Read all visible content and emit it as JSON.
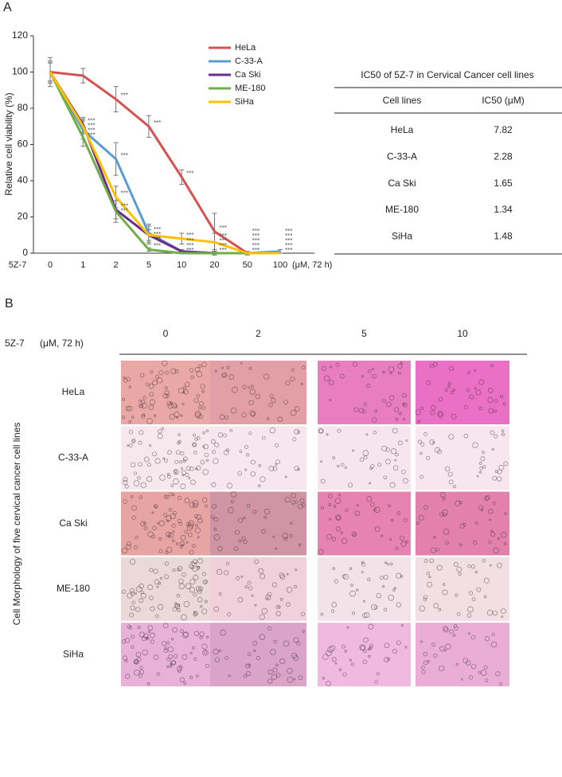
{
  "chart_data": {
    "type": "line",
    "panel_label": "A",
    "y_label": "Relative cell viability (%)",
    "x_prefix": "5Z-7",
    "x_unit": "(μM, 72 h)",
    "categories": [
      "0",
      "1",
      "2",
      "5",
      "10",
      "20",
      "50",
      "100"
    ],
    "ylim": [
      0,
      120
    ],
    "yticks": [
      0,
      20,
      40,
      60,
      80,
      100,
      120
    ],
    "series": [
      {
        "name": "HeLa",
        "color": "#d6514f",
        "values": [
          100,
          98,
          85,
          70,
          42,
          12,
          0,
          0
        ],
        "errors": [
          5,
          4,
          7,
          6,
          4,
          10,
          0,
          0
        ],
        "significance": [
          null,
          null,
          "***",
          "***",
          "***",
          "***",
          "***",
          "***"
        ]
      },
      {
        "name": "C-33-A",
        "color": "#5b9bd5",
        "values": [
          100,
          68,
          52,
          11,
          1,
          0,
          0,
          1
        ],
        "errors": [
          6,
          5,
          9,
          5,
          1,
          1,
          1,
          1
        ],
        "significance": [
          null,
          "***",
          "***",
          "***",
          "***",
          "***",
          "***",
          "***"
        ]
      },
      {
        "name": "Ca Ski",
        "color": "#6a2c91",
        "values": [
          100,
          71,
          24,
          10,
          1,
          0,
          0,
          0
        ],
        "errors": [
          5,
          4,
          5,
          3,
          1,
          1,
          0,
          0
        ],
        "significance": [
          null,
          "***",
          "***",
          "***",
          "***",
          "***",
          "***",
          "***"
        ]
      },
      {
        "name": "ME-180",
        "color": "#70ad47",
        "values": [
          100,
          64,
          23,
          2,
          0,
          0,
          0,
          0
        ],
        "errors": [
          6,
          5,
          6,
          1,
          0,
          0,
          0,
          0
        ],
        "significance": [
          null,
          "***",
          "***",
          "***",
          "***",
          "***",
          "***",
          "***"
        ]
      },
      {
        "name": "SiHa",
        "color": "#ffc000",
        "values": [
          100,
          70,
          31,
          10,
          8,
          6,
          0,
          0
        ],
        "errors": [
          8,
          4,
          6,
          5,
          3,
          5,
          0,
          0
        ],
        "significance": [
          null,
          "***",
          "***",
          "***",
          "***",
          "***",
          "***",
          "***"
        ]
      }
    ]
  },
  "table": {
    "title": "IC50 of 5Z-7 in Cervical Cancer cell lines",
    "header": [
      "Cell lines",
      "IC50 (μM)"
    ],
    "rows": [
      [
        "HeLa",
        "7.82"
      ],
      [
        "C-33-A",
        "2.28"
      ],
      [
        "Ca Ski",
        "1.65"
      ],
      [
        "ME-180",
        "1.34"
      ],
      [
        "SiHa",
        "1.48"
      ]
    ]
  },
  "panel_b": {
    "label": "B",
    "treatment": "5Z-7",
    "unit": "(μM, 72 h)",
    "doses": [
      "0",
      "2",
      "5",
      "10"
    ],
    "cell_lines": [
      "HeLa",
      "C-33-A",
      "Ca Ski",
      "ME-180",
      "SiHa"
    ],
    "side_label": "Cell Morphology of five cervical cancer cell lines"
  }
}
